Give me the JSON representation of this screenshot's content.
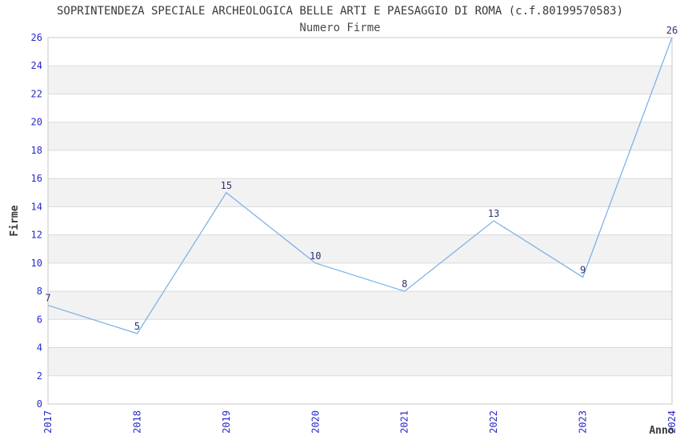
{
  "header": {
    "title": "SOPRINTENDEZA SPECIALE ARCHEOLOGICA BELLE ARTI E PAESAGGIO DI ROMA (c.f.80199570583)",
    "subtitle": "Numero Firme"
  },
  "chart_data": {
    "type": "line",
    "title": "SOPRINTENDEZA SPECIALE ARCHEOLOGICA BELLE ARTI E PAESAGGIO DI ROMA (c.f.80199570583)",
    "subtitle": "Numero Firme",
    "categories": [
      "2017",
      "2018",
      "2019",
      "2020",
      "2021",
      "2022",
      "2023",
      "2024"
    ],
    "values": [
      7,
      5,
      15,
      10,
      8,
      13,
      9,
      26
    ],
    "xlabel": "Anno",
    "ylabel": "Firme",
    "ylim": [
      0,
      26
    ],
    "ytick_step": 2,
    "grid": true,
    "bands_alternating": true,
    "legend": false,
    "markers": false,
    "colors": {
      "line": "#7fb3e8",
      "tick_label": "#2929cc",
      "data_label": "#303070",
      "band": "#f2f2f2",
      "gridline": "#dadada",
      "plot_border": "#c8c8c8",
      "title_text": "#3a3a3a"
    }
  }
}
